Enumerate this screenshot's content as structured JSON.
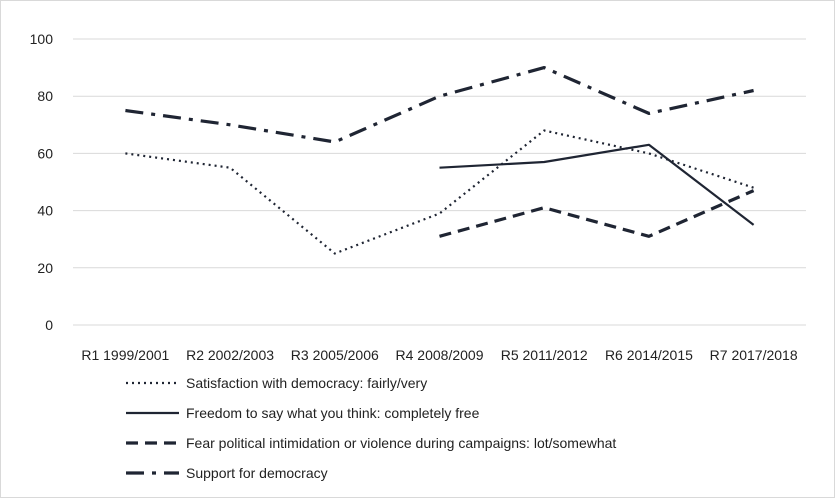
{
  "chart_data": {
    "type": "line",
    "categories": [
      "R1 1999/2001",
      "R2 2002/2003",
      "R3 2005/2006",
      "R4 2008/2009",
      "R5 2011/2012",
      "R6 2014/2015",
      "R7 2017/2018"
    ],
    "ylim": [
      0,
      100
    ],
    "yticks": [
      0,
      20,
      40,
      60,
      80,
      100
    ],
    "grid": true,
    "legend_position": "bottom",
    "series": [
      {
        "name": "Satisfaction with democracy: fairly/very",
        "style": "dotted",
        "values": [
          60,
          55,
          25,
          39,
          68,
          60,
          48
        ]
      },
      {
        "name": "Freedom to say what you think: completely free",
        "style": "solid",
        "values": [
          null,
          null,
          null,
          55,
          57,
          63,
          35
        ]
      },
      {
        "name": "Fear political intimidation or violence during campaigns: lot/somewhat",
        "style": "dashed",
        "values": [
          null,
          null,
          null,
          31,
          41,
          31,
          47
        ]
      },
      {
        "name": "Support for democracy",
        "style": "dashdot",
        "values": [
          75,
          70,
          64,
          80,
          90,
          74,
          82
        ]
      }
    ],
    "colors": {
      "line": "#1f2533",
      "grid": "#d9d9d9",
      "text": "#222222"
    }
  }
}
